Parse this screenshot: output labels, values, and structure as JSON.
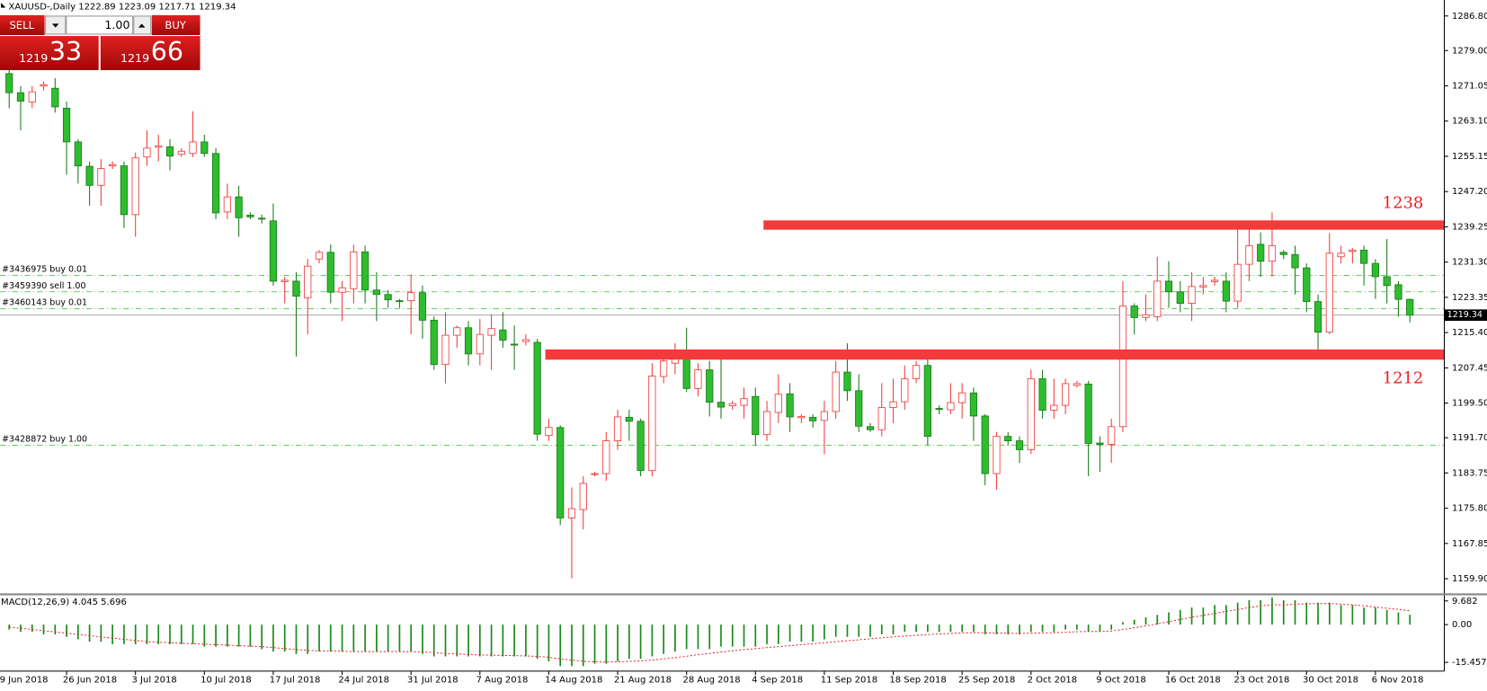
{
  "chart_data": {
    "type": "candlestick",
    "symbol": "XAUUSD-,Daily",
    "bull_color": "#f03c3c",
    "bear_color": "#2ebd2e",
    "xlim": [
      -0.8,
      125
    ],
    "xticks": [
      {
        "value": -1,
        "label": "19 Jun 2018"
      },
      {
        "value": 5,
        "label": "26 Jun 2018"
      },
      {
        "value": 11,
        "label": "3 Jul 2018"
      },
      {
        "value": 17,
        "label": "10 Jul 2018"
      },
      {
        "value": 23,
        "label": "17 Jul 2018"
      },
      {
        "value": 29,
        "label": "24 Jul 2018"
      },
      {
        "value": 35,
        "label": "31 Jul 2018"
      },
      {
        "value": 41,
        "label": "7 Aug 2018"
      },
      {
        "value": 47,
        "label": "14 Aug 2018"
      },
      {
        "value": 53,
        "label": "21 Aug 2018"
      },
      {
        "value": 59,
        "label": "28 Aug 2018"
      },
      {
        "value": 65,
        "label": "4 Sep 2018"
      },
      {
        "value": 71,
        "label": "11 Sep 2018"
      },
      {
        "value": 77,
        "label": "18 Sep 2018"
      },
      {
        "value": 83,
        "label": "25 Sep 2018"
      },
      {
        "value": 89,
        "label": "2 Oct 2018"
      },
      {
        "value": 95,
        "label": "9 Oct 2018"
      },
      {
        "value": 101,
        "label": "16 Oct 2018"
      },
      {
        "value": 107,
        "label": "23 Oct 2018"
      },
      {
        "value": 113,
        "label": "30 Oct 2018"
      },
      {
        "value": 119,
        "label": "6 Nov 2018"
      }
    ],
    "ylim": [
      1156.6,
      1290.4
    ],
    "yticks": [
      {
        "value": 1286.8,
        "label": "1286.80"
      },
      {
        "value": 1279,
        "label": "1279.00"
      },
      1271.05,
      {
        "value": 1263.1,
        "label": "1263.10"
      },
      1255.15,
      {
        "value": 1247.2,
        "label": "1247.20"
      },
      1239.25,
      {
        "value": 1231.3,
        "label": "1231.30"
      },
      1223.35,
      {
        "value": 1215.4,
        "label": "1215.40"
      },
      1207.45,
      {
        "value": 1199.5,
        "label": "1199.50"
      },
      {
        "value": 1191.7,
        "label": "1191.70"
      },
      1183.75,
      {
        "value": 1175.8,
        "label": "1175.80"
      },
      1167.85,
      {
        "value": 1159.9,
        "label": "1159.90"
      }
    ],
    "open": [
      1273.8,
      1269.5,
      1267.4,
      1271.0,
      1270.5,
      1266,
      1258.4,
      1252.9,
      1248.6,
      1253,
      1253,
      1242,
      1255,
      1257.2,
      1257.3,
      1255.6,
      1255.8,
      1258.4,
      1255.8,
      1242.6,
      1246,
      1241.9,
      1241.2,
      1240.6,
      1226.9,
      1227,
      1223.2,
      1232,
      1233.5,
      1224.5,
      1225.3,
      1233.6,
      1225,
      1224,
      1222.6,
      1222.6,
      1224.4,
      1218.2,
      1208.2,
      1214.8,
      1216.5,
      1210.6,
      1214.8,
      1216,
      1212.8,
      1213.4,
      1213.2,
      1192.2,
      1194,
      1173.6,
      1175.5,
      1183.4,
      1183.6,
      1191,
      1196.3,
      1195.4,
      1184.3,
      1205.5,
      1208.5,
      1210.5,
      1202.8,
      1207,
      1199.7,
      1198.9,
      1199,
      1201,
      1192.4,
      1197.4,
      1201.6,
      1196.2,
      1196.3,
      1195.6,
      1197.6,
      1206.5,
      1202.3,
      1194.2,
      1193.5,
      1198.5,
      1199.8,
      1205,
      1208,
      1198.3,
      1198,
      1199.6,
      1201.8,
      1196.6,
      1183.6,
      1192,
      1191,
      1189,
      1205,
      1197.9,
      1199,
      1203.5,
      1203.8,
      1190.5,
      1190.2,
      1194.2,
      1221.4,
      1218.8,
      1219,
      1227,
      1224.6,
      1222,
      1225.7,
      1226.9,
      1227,
      1222.5,
      1230.8,
      1235.3,
      1231.5,
      1233.5,
      1233,
      1230,
      1222.4,
      1215.5,
      1232.5,
      1233.7,
      1234,
      1231,
      1228,
      1226.2,
      1222.89
    ],
    "high": [
      1276,
      1271,
      1271,
      1272,
      1272.8,
      1267.5,
      1259,
      1254,
      1254.5,
      1254,
      1254,
      1256,
      1261,
      1260,
      1259,
      1257,
      1265.3,
      1260,
      1257,
      1249,
      1248.5,
      1242.5,
      1242,
      1244.5,
      1228,
      1229,
      1232,
      1234,
      1235.3,
      1227,
      1235.2,
      1235,
      1229,
      1225,
      1223,
      1228.5,
      1226,
      1219,
      1220,
      1217,
      1218,
      1218.5,
      1219.5,
      1220,
      1217,
      1215,
      1214,
      1196,
      1194.5,
      1180.5,
      1183,
      1184,
      1193,
      1198,
      1198,
      1196,
      1208.5,
      1210.5,
      1213,
      1216.5,
      1208.5,
      1209,
      1209.7,
      1200,
      1203,
      1203,
      1200,
      1206,
      1204,
      1197,
      1197,
      1200,
      1209,
      1213,
      1206,
      1195,
      1204,
      1205,
      1208,
      1209,
      1210.5,
      1199,
      1204,
      1204,
      1203,
      1197,
      1193,
      1193,
      1192,
      1207,
      1207,
      1205,
      1205,
      1204.5,
      1204.5,
      1192,
      1196,
      1227,
      1222,
      1224,
      1232.5,
      1231.5,
      1227,
      1229,
      1228,
      1228,
      1229,
      1239.5,
      1239,
      1238,
      1242.5,
      1234,
      1235,
      1231,
      1224,
      1237.8,
      1235,
      1234.5,
      1235,
      1232,
      1236.5,
      1227,
      1223.09
    ],
    "low": [
      1266,
      1261,
      1266,
      1270,
      1265,
      1251,
      1249,
      1244,
      1244,
      1252.3,
      1239,
      1237,
      1253,
      1254,
      1252,
      1255,
      1255,
      1255,
      1241,
      1241,
      1237,
      1241,
      1240,
      1226,
      1222,
      1210,
      1215,
      1231,
      1222,
      1218,
      1222,
      1222,
      1218,
      1221,
      1221,
      1215,
      1214,
      1207,
      1204,
      1212,
      1208,
      1208,
      1207,
      1212,
      1207,
      1212.5,
      1191,
      1191,
      1172,
      1160,
      1171,
      1183,
      1182,
      1189,
      1191,
      1183,
      1183,
      1204,
      1206,
      1202,
      1201,
      1196.5,
      1196,
      1198,
      1196,
      1190,
      1191,
      1195,
      1193,
      1195,
      1194,
      1188,
      1196,
      1200,
      1193,
      1193,
      1192,
      1195,
      1198,
      1204,
      1190,
      1197,
      1197,
      1196,
      1191,
      1181,
      1180,
      1190,
      1186,
      1188,
      1196,
      1196,
      1197,
      1203,
      1183,
      1184,
      1186,
      1193,
      1215,
      1218,
      1218,
      1221,
      1220,
      1218,
      1224,
      1226,
      1220,
      1221,
      1227,
      1228,
      1228,
      1232,
      1224,
      1220,
      1211.5,
      1215,
      1231,
      1231,
      1226,
      1223,
      1222,
      1219,
      1217.71
    ],
    "close": [
      1269.5,
      1267.6,
      1269.7,
      1271.3,
      1266.3,
      1258.4,
      1253,
      1248.6,
      1252.4,
      1253.3,
      1242,
      1254.8,
      1257,
      1257.5,
      1255.2,
      1256.3,
      1258.4,
      1255.8,
      1242.4,
      1246,
      1241.3,
      1241.5,
      1241,
      1227,
      1227.2,
      1223.6,
      1230.4,
      1233.5,
      1224.5,
      1225.5,
      1233.6,
      1225,
      1224,
      1222.8,
      1222.4,
      1224.4,
      1218.2,
      1208.2,
      1214.8,
      1216.5,
      1210.6,
      1215,
      1216.3,
      1213.7,
      1212.6,
      1213.8,
      1192.5,
      1194,
      1173.6,
      1175.7,
      1181.4,
      1183.6,
      1191,
      1196.4,
      1195.4,
      1184.3,
      1205.6,
      1209,
      1210.5,
      1202.8,
      1207,
      1199.7,
      1198.6,
      1199.4,
      1200.5,
      1192.4,
      1197.6,
      1201.5,
      1196.4,
      1196.5,
      1195.5,
      1197.6,
      1206.5,
      1202.3,
      1194.3,
      1193.5,
      1198.5,
      1199.8,
      1205,
      1208,
      1192,
      1198.1,
      1199.6,
      1201.8,
      1196.6,
      1183.6,
      1192,
      1191,
      1189,
      1205,
      1197.9,
      1199,
      1203.9,
      1203.9,
      1190.4,
      1190.2,
      1194.2,
      1221.4,
      1218.8,
      1219.4,
      1227,
      1224.6,
      1222,
      1225.8,
      1226,
      1227.2,
      1222.5,
      1230.8,
      1235,
      1231.5,
      1235,
      1233,
      1230,
      1222.4,
      1215.5,
      1233.3,
      1233.3,
      1234,
      1231,
      1228,
      1226,
      1222.9,
      1219.34
    ],
    "orders": [
      {
        "label": "#3436975 buy 0.01",
        "price": 1228.3
      },
      {
        "label": "#3459390 sell 1.00",
        "price": 1224.6
      },
      {
        "label": "#3460143 buy 0.01",
        "price": 1220.8
      },
      {
        "label": "#3428872 buy 1.00",
        "price": 1190.0
      }
    ],
    "zones": [
      {
        "label": "1238",
        "top": 1240.7,
        "bottom": 1238.6,
        "from": 65.7
      },
      {
        "label": "1212",
        "top": 1211.6,
        "bottom": 1209.3,
        "from": 46.7
      }
    ],
    "macd": {
      "label": "MACD(12,26,9)",
      "ylim": [
        -19,
        12
      ],
      "yticks": [
        9.682,
        {
          "value": 0,
          "label": "0.00"
        },
        -15.457
      ],
      "histogram": [
        -2,
        -3,
        -3,
        -4,
        -4,
        -5,
        -6,
        -7,
        -7,
        -8,
        -8,
        -8,
        -8,
        -8,
        -8,
        -8,
        -8,
        -9,
        -9,
        -9,
        -9,
        -9,
        -10,
        -11,
        -11,
        -12,
        -12,
        -11,
        -11,
        -11,
        -11,
        -11,
        -11,
        -11,
        -11,
        -11,
        -12,
        -13,
        -13,
        -13,
        -13,
        -13,
        -13,
        -13,
        -13,
        -13,
        -14,
        -15,
        -17,
        -17,
        -17,
        -16,
        -16,
        -15,
        -14,
        -14,
        -13,
        -12,
        -11,
        -10,
        -10,
        -10,
        -9,
        -9,
        -9,
        -9,
        -8,
        -8,
        -7,
        -7,
        -7,
        -6,
        -5,
        -5,
        -5,
        -5,
        -4,
        -4,
        -3,
        -3,
        -3,
        -3,
        -3,
        -3,
        -3,
        -4,
        -4,
        -4,
        -4,
        -3,
        -3,
        -3,
        -2,
        -2,
        -3,
        -3,
        -2,
        1,
        2,
        3,
        4,
        5,
        6,
        7,
        7,
        8,
        8,
        9,
        10,
        10,
        11,
        10,
        10,
        9,
        9,
        9,
        8,
        8,
        7,
        7,
        6,
        5,
        4.045
      ],
      "signal": [
        -1,
        -1.5,
        -2,
        -2.5,
        -3,
        -3.5,
        -4,
        -4.5,
        -5,
        -5.5,
        -6,
        -6.5,
        -7,
        -7.2,
        -7.4,
        -7.6,
        -7.8,
        -8,
        -8.2,
        -8.4,
        -8.6,
        -8.8,
        -9,
        -9.4,
        -9.8,
        -10.2,
        -10.5,
        -10.7,
        -10.8,
        -10.9,
        -11,
        -11,
        -11,
        -11,
        -11,
        -11,
        -11.2,
        -11.5,
        -11.8,
        -12,
        -12.2,
        -12.4,
        -12.5,
        -12.6,
        -12.7,
        -12.8,
        -13,
        -13.4,
        -14,
        -14.5,
        -15,
        -15.2,
        -15.3,
        -15.2,
        -15,
        -14.8,
        -14.5,
        -14,
        -13.5,
        -12.9,
        -12.3,
        -11.8,
        -11.2,
        -10.7,
        -10.2,
        -9.8,
        -9.4,
        -9,
        -8.6,
        -8.2,
        -7.8,
        -7.4,
        -7,
        -6.6,
        -6.2,
        -5.8,
        -5.4,
        -5,
        -4.7,
        -4.4,
        -4.1,
        -3.8,
        -3.6,
        -3.4,
        -3.3,
        -3.3,
        -3.4,
        -3.5,
        -3.6,
        -3.5,
        -3.4,
        -3.3,
        -3.1,
        -2.9,
        -2.8,
        -2.8,
        -2.6,
        -2,
        -1.3,
        -0.5,
        0.3,
        1.2,
        2.1,
        3,
        3.8,
        4.6,
        5.4,
        6.2,
        7,
        7.6,
        8.2,
        8.0,
        8.3,
        8.5,
        8.6,
        8.6,
        8.4,
        8.1,
        7.7,
        7.2,
        6.7,
        6.2,
        5.696
      ]
    }
  },
  "trade_panel": {
    "sell": "SELL",
    "buy": "BUY",
    "lot": "1.00",
    "sell_main": "1219",
    "sell_pips": "33",
    "buy_main": "1219",
    "buy_pips": "66"
  }
}
